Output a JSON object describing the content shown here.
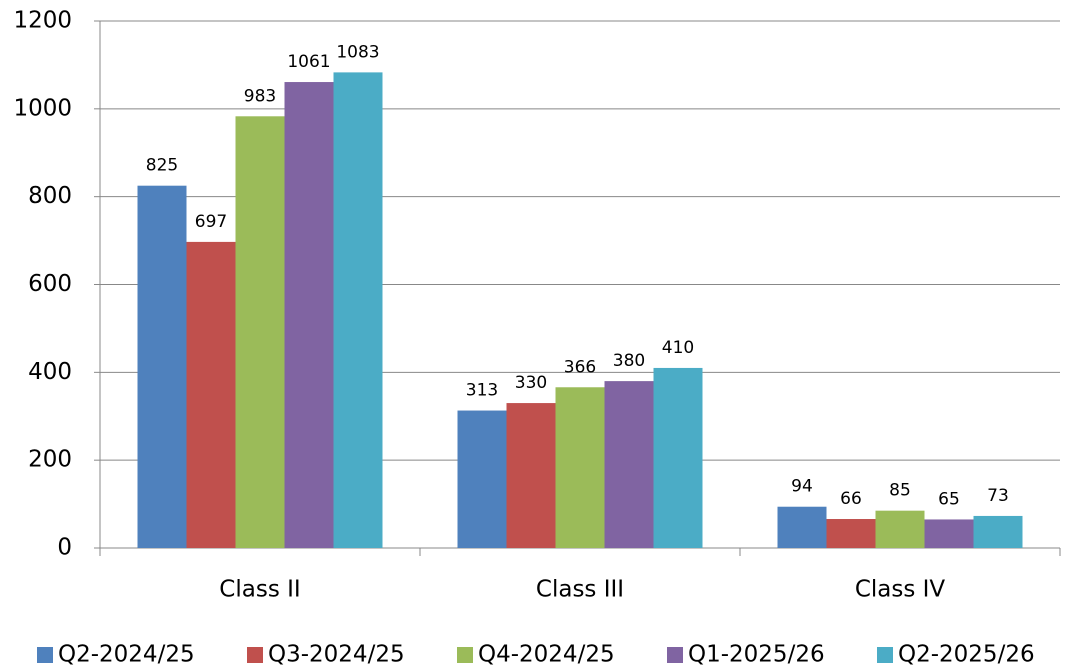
{
  "chart_data": {
    "type": "bar",
    "categories": [
      "Class II",
      "Class III",
      "Class IV"
    ],
    "series": [
      {
        "name": "Q2-2024/25",
        "color": "#4f81bd",
        "values": [
          825,
          313,
          94
        ]
      },
      {
        "name": "Q3-2024/25",
        "color": "#c0504d",
        "values": [
          697,
          330,
          66
        ]
      },
      {
        "name": "Q4-2024/25",
        "color": "#9bbb59",
        "values": [
          983,
          366,
          85
        ]
      },
      {
        "name": "Q1-2025/26",
        "color": "#8064a2",
        "values": [
          1061,
          380,
          65
        ]
      },
      {
        "name": "Q2-2025/26",
        "color": "#4bacc6",
        "values": [
          1083,
          410,
          73
        ]
      }
    ],
    "ylim": [
      0,
      1200
    ],
    "yticks": [
      0,
      200,
      400,
      600,
      800,
      1000,
      1200
    ],
    "grid": true,
    "legend": "bottom"
  }
}
